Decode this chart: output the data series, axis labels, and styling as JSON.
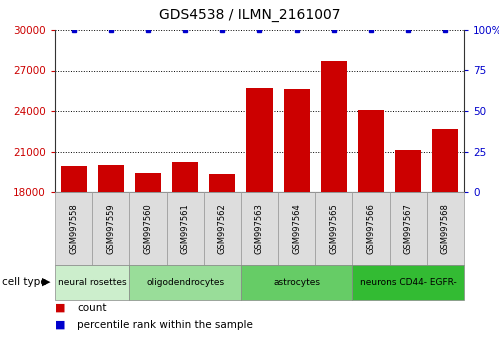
{
  "title": "GDS4538 / ILMN_2161007",
  "samples": [
    "GSM997558",
    "GSM997559",
    "GSM997560",
    "GSM997561",
    "GSM997562",
    "GSM997563",
    "GSM997564",
    "GSM997565",
    "GSM997566",
    "GSM997567",
    "GSM997568"
  ],
  "counts": [
    19900,
    20000,
    19400,
    20200,
    19300,
    25700,
    25600,
    27700,
    24100,
    21100,
    22700
  ],
  "percentile_y": [
    100,
    100,
    100,
    100,
    100,
    100,
    100,
    100,
    100,
    100,
    100
  ],
  "bar_color": "#cc0000",
  "percentile_color": "#0000cc",
  "ymin": 18000,
  "ymax": 30000,
  "yticks": [
    18000,
    21000,
    24000,
    27000,
    30000
  ],
  "y2min": 0,
  "y2max": 100,
  "y2ticks": [
    0,
    25,
    50,
    75,
    100
  ],
  "y2ticklabels": [
    "0",
    "25",
    "50",
    "75",
    "100%"
  ],
  "bar_width": 0.7,
  "tick_label_color_left": "#cc0000",
  "tick_label_color_right": "#0000cc",
  "label_count": "count",
  "label_percentile": "percentile rank within the sample",
  "cell_type_label": "cell type",
  "cell_groups": [
    {
      "label": "neural rosettes",
      "start": 0,
      "end": 1,
      "color": "#cceecc"
    },
    {
      "label": "oligodendrocytes",
      "start": 2,
      "end": 4,
      "color": "#99dd99"
    },
    {
      "label": "astrocytes",
      "start": 5,
      "end": 7,
      "color": "#66cc66"
    },
    {
      "label": "neurons CD44- EGFR-",
      "start": 8,
      "end": 10,
      "color": "#33bb33"
    }
  ],
  "sample_box_color": "#dddddd",
  "sample_box_edge": "#999999"
}
